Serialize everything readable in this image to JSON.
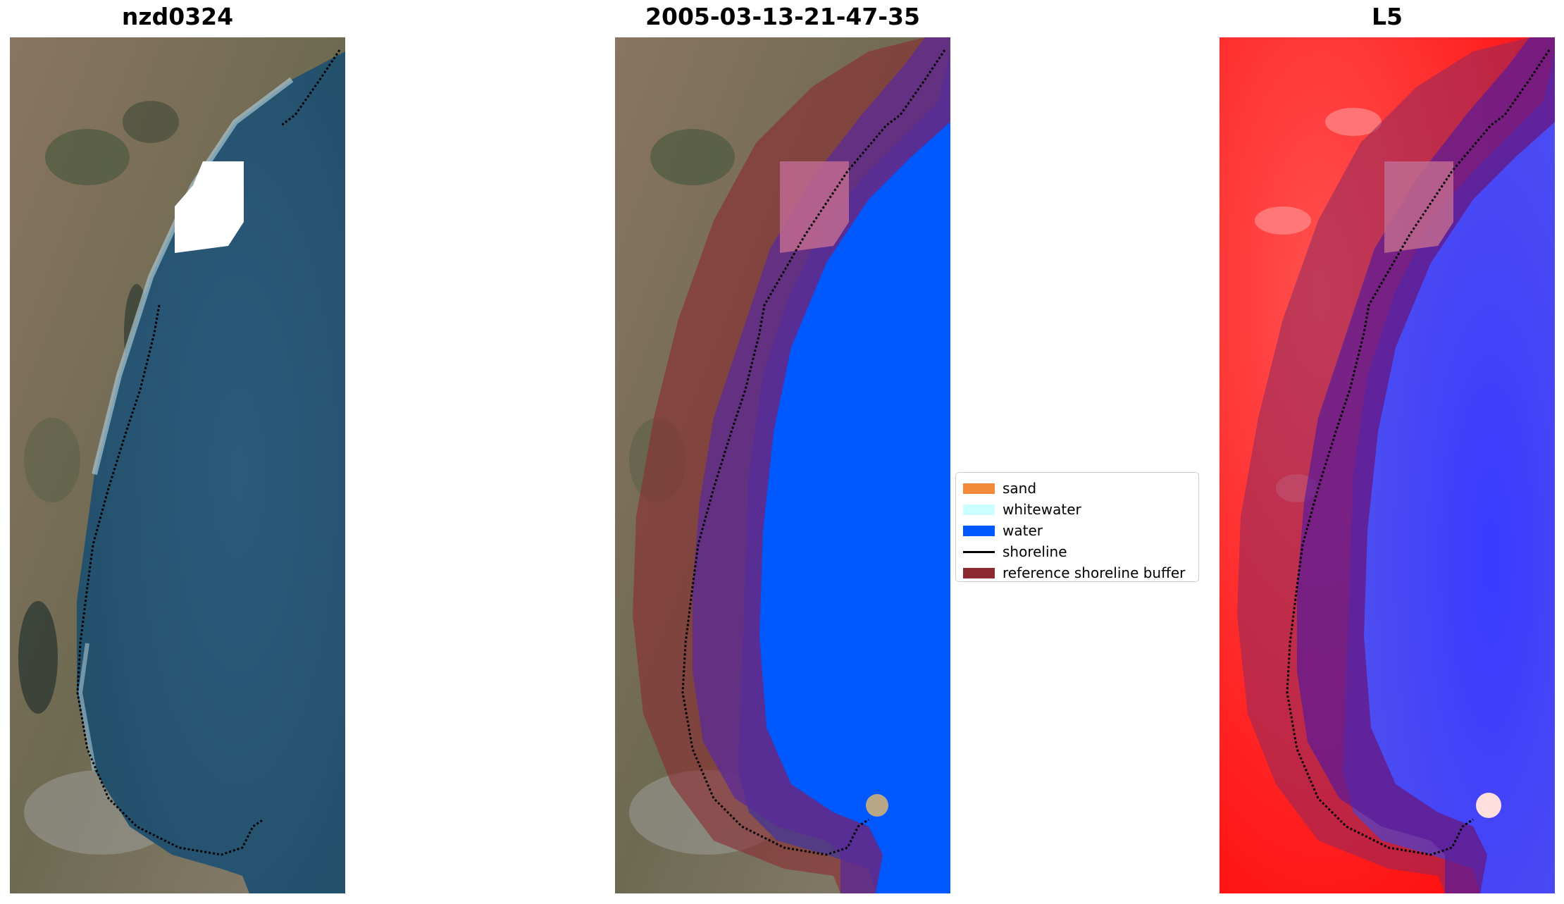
{
  "panels": [
    {
      "title": "nzd0324",
      "kind": "rgb"
    },
    {
      "title": "2005-03-13-21-47-35",
      "kind": "classified"
    },
    {
      "title": "L5",
      "kind": "index"
    }
  ],
  "legend": {
    "items": [
      {
        "label": "sand",
        "type": "patch",
        "color": "#f28a3a"
      },
      {
        "label": "whitewater",
        "type": "patch",
        "color": "#ccffff"
      },
      {
        "label": "water",
        "type": "patch",
        "color": "#0058ff"
      },
      {
        "label": "shoreline",
        "type": "line",
        "color": "#000000"
      },
      {
        "label": "reference shoreline buffer",
        "type": "patch",
        "color": "#8b2a30"
      }
    ]
  },
  "colors": {
    "land": "#7a6a55",
    "sea": "#2a5878",
    "water_class": "#0058ff",
    "buffer": "#8b2a30",
    "index_land": "#ff1a1a",
    "index_water": "#3c3cff",
    "nodata": "#ffffff"
  }
}
